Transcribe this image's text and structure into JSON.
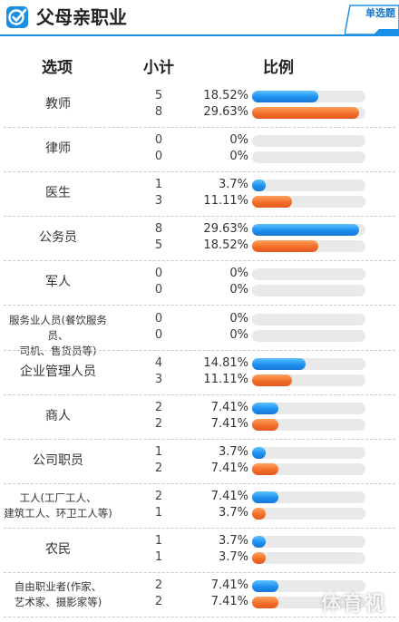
{
  "header": {
    "title": "父母亲职业",
    "badge": "单选题"
  },
  "columns": {
    "option": "选项",
    "count": "小计",
    "ratio": "比例"
  },
  "rows": [
    {
      "label": "教师",
      "counts": [
        "5",
        "8"
      ],
      "percents": [
        "18.52%",
        "29.63%"
      ],
      "values": [
        18.52,
        29.63
      ]
    },
    {
      "label": "律师",
      "counts": [
        "0",
        "0"
      ],
      "percents": [
        "0%",
        "0%"
      ],
      "values": [
        0,
        0
      ]
    },
    {
      "label": "医生",
      "counts": [
        "1",
        "3"
      ],
      "percents": [
        "3.7%",
        "11.11%"
      ],
      "values": [
        3.7,
        11.11
      ]
    },
    {
      "label": "公务员",
      "counts": [
        "8",
        "5"
      ],
      "percents": [
        "29.63%",
        "18.52%"
      ],
      "values": [
        29.63,
        18.52
      ]
    },
    {
      "label": "军人",
      "counts": [
        "0",
        "0"
      ],
      "percents": [
        "0%",
        "0%"
      ],
      "values": [
        0,
        0
      ]
    },
    {
      "label": "服务业人员(餐饮服务员、\n司机、售货员等)",
      "counts": [
        "0",
        "0"
      ],
      "percents": [
        "0%",
        "0%"
      ],
      "values": [
        0,
        0
      ]
    },
    {
      "label": "企业管理人员",
      "counts": [
        "4",
        "3"
      ],
      "percents": [
        "14.81%",
        "11.11%"
      ],
      "values": [
        14.81,
        11.11
      ]
    },
    {
      "label": "商人",
      "counts": [
        "2",
        "2"
      ],
      "percents": [
        "7.41%",
        "7.41%"
      ],
      "values": [
        7.41,
        7.41
      ]
    },
    {
      "label": "公司职员",
      "counts": [
        "1",
        "2"
      ],
      "percents": [
        "3.7%",
        "7.41%"
      ],
      "values": [
        3.7,
        7.41
      ]
    },
    {
      "label": "工人(工厂工人、\n建筑工人、环卫工人等)",
      "counts": [
        "2",
        "1"
      ],
      "percents": [
        "7.41%",
        "3.7%"
      ],
      "values": [
        7.41,
        3.7
      ]
    },
    {
      "label": "农民",
      "counts": [
        "1",
        "1"
      ],
      "percents": [
        "3.7%",
        "3.7%"
      ],
      "values": [
        3.7,
        3.7
      ]
    },
    {
      "label": "自由职业者(作家、\n艺术家、摄影家等)",
      "counts": [
        "2",
        "2"
      ],
      "percents": [
        "7.41%",
        "7.41%"
      ],
      "values": [
        7.41,
        7.41
      ]
    }
  ],
  "colors": {
    "series_1": "#1f8ff0",
    "series_2": "#f26f2c",
    "accent": "#1a8fe6"
  },
  "watermark": "体育视"
}
